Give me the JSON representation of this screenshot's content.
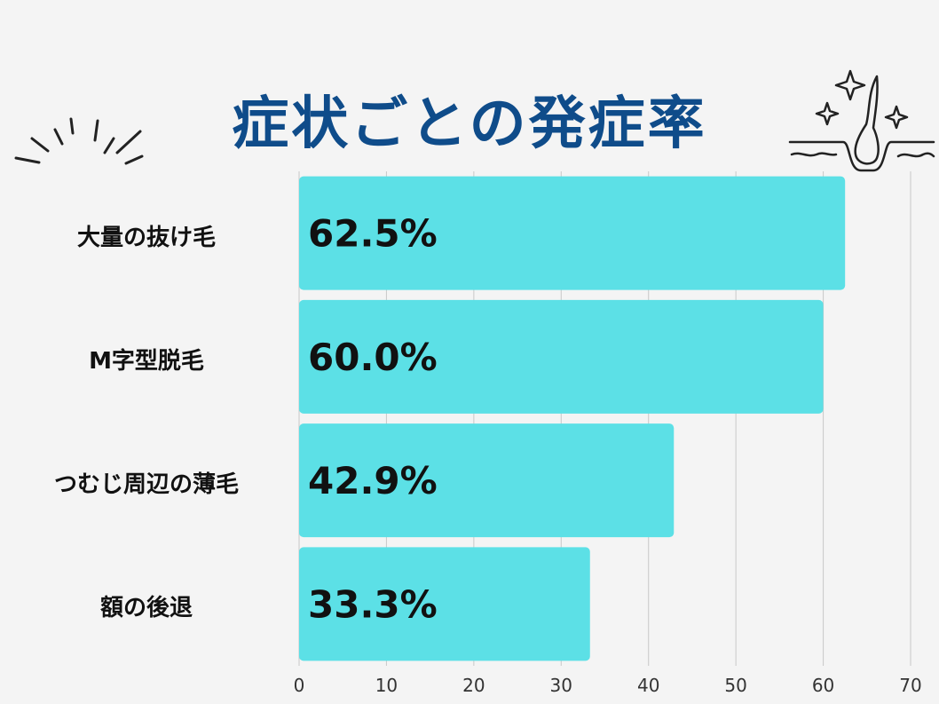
{
  "colors": {
    "title": "#0f4c8a",
    "bar": "#5ce0e6",
    "grid": "#c8c8c8",
    "text": "#111111",
    "background": "#f4f4f4"
  },
  "icons": {
    "left": "burst-lines-icon",
    "right": "hair-follicle-sparkle-icon"
  },
  "chart_data": {
    "type": "bar",
    "orientation": "horizontal",
    "title": "症状ごとの発症率",
    "categories": [
      "大量の抜け毛",
      "M字型脱毛",
      "つむじ周辺の薄毛",
      "額の後退"
    ],
    "values": [
      62.5,
      60.0,
      42.9,
      33.3
    ],
    "value_labels": [
      "62.5%",
      "60.0%",
      "42.9%",
      "33.3%"
    ],
    "xlim": [
      0,
      70
    ],
    "xticks": [
      0,
      10,
      20,
      30,
      40,
      50,
      60,
      70
    ],
    "xlabel": "",
    "ylabel": "",
    "grid": "vertical",
    "legend": "none"
  }
}
